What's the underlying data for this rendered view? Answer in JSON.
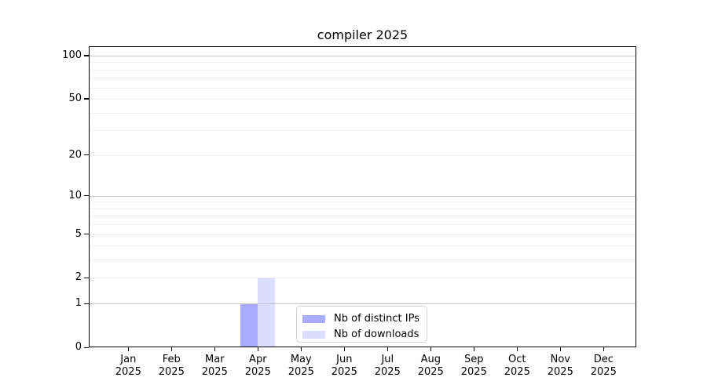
{
  "title": "compiler 2025",
  "legend": {
    "items": [
      {
        "label": "Nb of distinct IPs",
        "color": "#aaaaff"
      },
      {
        "label": "Nb of downloads",
        "color": "#ddddff"
      }
    ]
  },
  "chart_data": {
    "type": "bar",
    "title": "compiler 2025",
    "categories": [
      "Jan",
      "Feb",
      "Mar",
      "Apr",
      "May",
      "Jun",
      "Jul",
      "Aug",
      "Sep",
      "Oct",
      "Nov",
      "Dec"
    ],
    "year_label": "2025",
    "series": [
      {
        "name": "Nb of distinct IPs",
        "color": "#aaaaff",
        "values": [
          0,
          0,
          0,
          1,
          0,
          0,
          0,
          0,
          0,
          0,
          0,
          0
        ]
      },
      {
        "name": "Nb of downloads",
        "color": "#ddddff",
        "values": [
          0,
          0,
          0,
          2,
          0,
          0,
          0,
          0,
          0,
          0,
          0,
          0
        ]
      }
    ],
    "yscale": "log1p",
    "ylim": [
      0,
      116
    ],
    "y_ticks": [
      0,
      1,
      2,
      5,
      10,
      20,
      50,
      100
    ],
    "y_minor_ticks": [
      3,
      4,
      6,
      7,
      8,
      9,
      30,
      40,
      60,
      70,
      80,
      90
    ],
    "y_decade_ticks": [
      1,
      10,
      100
    ],
    "xlabel": "",
    "ylabel": "",
    "grid": "horizontal",
    "legend_position": "lower center"
  }
}
